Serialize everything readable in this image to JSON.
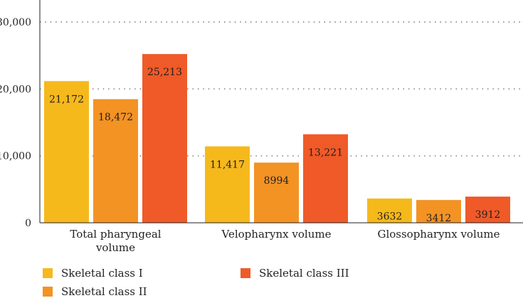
{
  "chart_data": {
    "type": "bar",
    "categories": [
      "Total pharyngeal volume",
      "Velopharynx volume",
      "Glossopharynx volume"
    ],
    "category_lines": [
      [
        "Total pharyngeal",
        "volume"
      ],
      [
        "Velopharynx volume"
      ],
      [
        "Glossopharynx volume"
      ]
    ],
    "series": [
      {
        "name": "Skeletal class I",
        "color": "#f6b91c",
        "values": [
          21172,
          11417,
          3632
        ],
        "labels": [
          "21,172",
          "11,417",
          "3632"
        ]
      },
      {
        "name": "Skeletal class II",
        "color": "#f39324",
        "values": [
          18472,
          8994,
          3412
        ],
        "labels": [
          "18,472",
          "8994",
          "3412"
        ]
      },
      {
        "name": "Skeletal class III",
        "color": "#ef5a28",
        "values": [
          25213,
          13221,
          3912
        ],
        "labels": [
          "25,213",
          "13,221",
          "3912"
        ]
      }
    ],
    "yticks": [
      0,
      10000,
      20000,
      30000
    ],
    "ytick_labels": [
      "0",
      "10,000",
      "20,000",
      "30,000"
    ],
    "ylim": [
      0,
      33500
    ],
    "grid": "horizontal dotted",
    "legend_position": "bottom",
    "title": "",
    "xlabel": "",
    "ylabel": ""
  }
}
